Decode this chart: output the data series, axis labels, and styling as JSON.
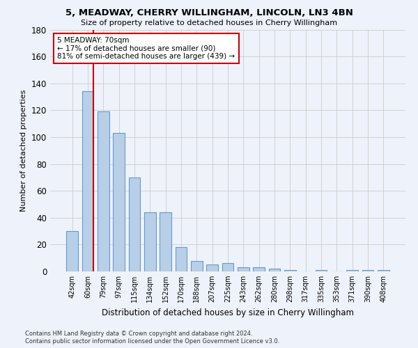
{
  "title1": "5, MEADWAY, CHERRY WILLINGHAM, LINCOLN, LN3 4BN",
  "title2": "Size of property relative to detached houses in Cherry Willingham",
  "xlabel": "Distribution of detached houses by size in Cherry Willingham",
  "ylabel": "Number of detached properties",
  "footnote1": "Contains HM Land Registry data © Crown copyright and database right 2024.",
  "footnote2": "Contains public sector information licensed under the Open Government Licence v3.0.",
  "bin_labels": [
    "42sqm",
    "60sqm",
    "79sqm",
    "97sqm",
    "115sqm",
    "134sqm",
    "152sqm",
    "170sqm",
    "188sqm",
    "207sqm",
    "225sqm",
    "243sqm",
    "262sqm",
    "280sqm",
    "298sqm",
    "317sqm",
    "335sqm",
    "353sqm",
    "371sqm",
    "390sqm",
    "408sqm"
  ],
  "bar_heights": [
    30,
    134,
    119,
    103,
    70,
    44,
    44,
    18,
    8,
    5,
    6,
    3,
    3,
    2,
    1,
    0,
    1,
    0,
    1,
    1,
    1
  ],
  "bar_color": "#b8cfe8",
  "bar_edge_color": "#6699cc",
  "grid_color": "#cccccc",
  "vline_color": "#cc0000",
  "annotation_line1": "5 MEADWAY: 70sqm",
  "annotation_line2": "← 17% of detached houses are smaller (90)",
  "annotation_line3": "81% of semi-detached houses are larger (439) →",
  "annotation_box_color": "#ffffff",
  "annotation_box_edge": "#cc0000",
  "ylim": [
    0,
    180
  ],
  "yticks": [
    0,
    20,
    40,
    60,
    80,
    100,
    120,
    140,
    160,
    180
  ],
  "background_color": "#eef2fa"
}
